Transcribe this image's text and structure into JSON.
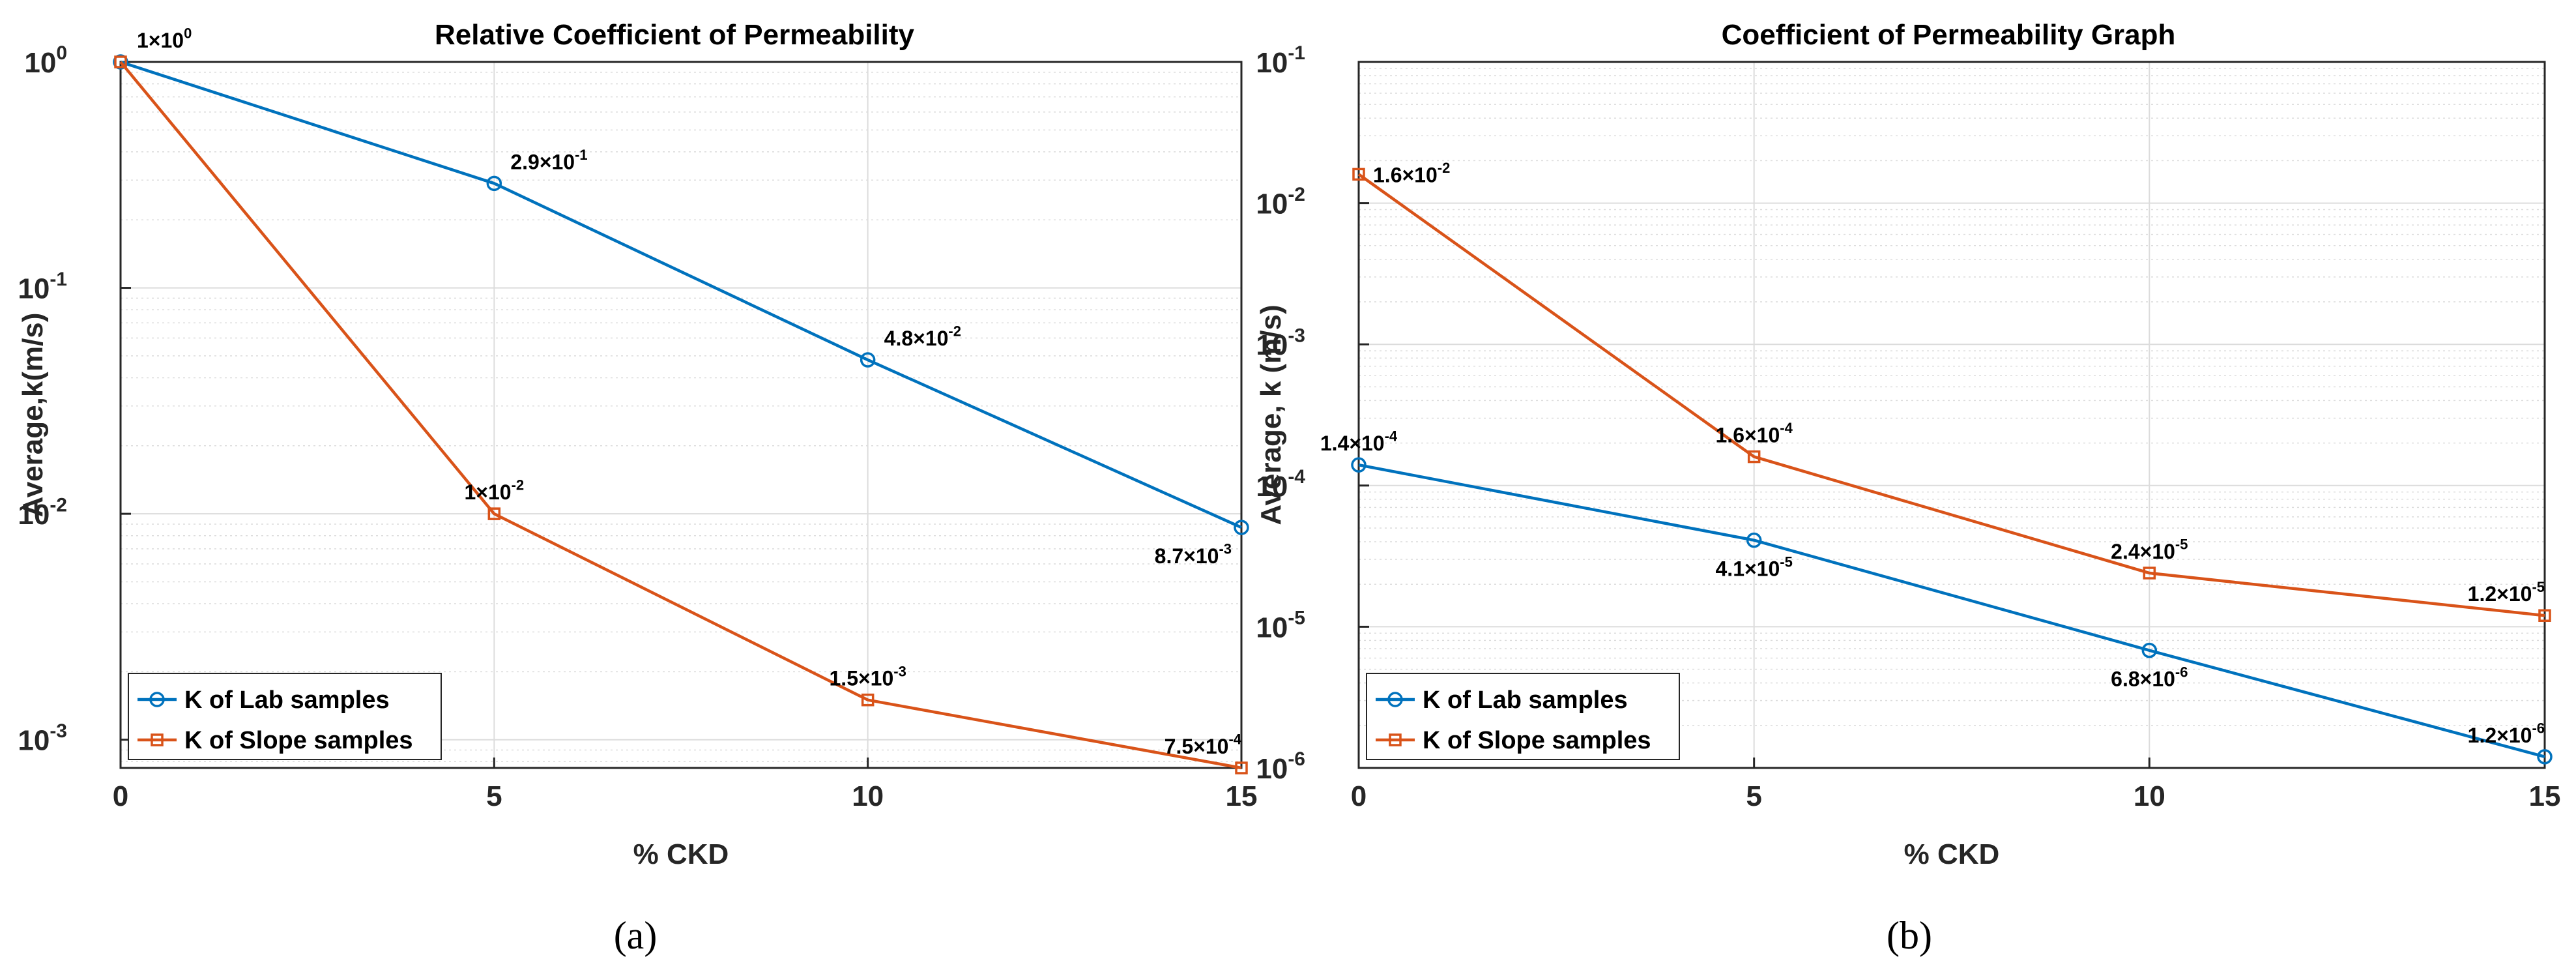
{
  "colors": {
    "lab": "#0072BD",
    "slope": "#D95319",
    "grid": "#dcdcdc",
    "axis": "#262626"
  },
  "captions": [
    "(a)",
    "(b)"
  ],
  "chart_data": [
    {
      "type": "line",
      "yscale": "log",
      "title": "Relative Coefficient of Permeability",
      "xlabel": "% CKD",
      "ylabel": "Average,k(m/s)",
      "xlim": [
        0,
        15
      ],
      "ylim": [
        0.00075,
        1.0
      ],
      "xticks": [
        0,
        5,
        10,
        15
      ],
      "yticks": [
        {
          "value": 1,
          "base": "10",
          "exp": "0"
        },
        {
          "value": 0.1,
          "base": "10",
          "exp": "-1"
        },
        {
          "value": 0.01,
          "base": "10",
          "exp": "-2"
        },
        {
          "value": 0.001,
          "base": "10",
          "exp": "-3"
        }
      ],
      "grid": true,
      "legend_position": "bottom-left",
      "x": [
        0,
        5,
        10,
        15
      ],
      "series": [
        {
          "name": "K of Lab samples",
          "color": "#0072BD",
          "marker": "circle",
          "values": [
            1,
            0.29,
            0.048,
            0.0087
          ],
          "labels": [
            {
              "mant": "1×10",
              "exp": "0",
              "pos": "above-right"
            },
            {
              "mant": "2.9×10",
              "exp": "-1",
              "pos": "above-right"
            },
            {
              "mant": "4.8×10",
              "exp": "-2",
              "pos": "above-right"
            },
            {
              "mant": "8.7×10",
              "exp": "-3",
              "pos": "below-left"
            }
          ]
        },
        {
          "name": "K of Slope samples",
          "color": "#D95319",
          "marker": "square",
          "values": [
            1,
            0.01,
            0.0015,
            0.00075
          ],
          "labels": [
            null,
            {
              "mant": "1×10",
              "exp": "-2",
              "pos": "above"
            },
            {
              "mant": "1.5×10",
              "exp": "-3",
              "pos": "above"
            },
            {
              "mant": "7.5×10",
              "exp": "-4",
              "pos": "above-left"
            }
          ]
        }
      ]
    },
    {
      "type": "line",
      "yscale": "log",
      "title": "Coefficient of Permeability Graph",
      "xlabel": "% CKD",
      "ylabel": "Average, k (m/s)",
      "xlim": [
        0,
        15
      ],
      "ylim": [
        1e-06,
        0.1
      ],
      "xticks": [
        0,
        5,
        10,
        15
      ],
      "yticks": [
        {
          "value": 0.1,
          "base": "10",
          "exp": "-1"
        },
        {
          "value": 0.01,
          "base": "10",
          "exp": "-2"
        },
        {
          "value": 0.001,
          "base": "10",
          "exp": "-3"
        },
        {
          "value": 0.0001,
          "base": "10",
          "exp": "-4"
        },
        {
          "value": 1e-05,
          "base": "10",
          "exp": "-5"
        },
        {
          "value": 1e-06,
          "base": "10",
          "exp": "-6"
        }
      ],
      "grid": true,
      "legend_position": "bottom-left",
      "x": [
        0,
        5,
        10,
        15
      ],
      "series": [
        {
          "name": "K of Lab samples",
          "color": "#0072BD",
          "marker": "circle",
          "values": [
            0.00014,
            4.1e-05,
            6.8e-06,
            1.2e-06
          ],
          "labels": [
            {
              "mant": "1.4×10",
              "exp": "-4",
              "pos": "above"
            },
            {
              "mant": "4.1×10",
              "exp": "-5",
              "pos": "below"
            },
            {
              "mant": "6.8×10",
              "exp": "-6",
              "pos": "below"
            },
            {
              "mant": "1.2×10",
              "exp": "-6",
              "pos": "above-left"
            }
          ]
        },
        {
          "name": "K of Slope samples",
          "color": "#D95319",
          "marker": "square",
          "values": [
            0.016,
            0.00016,
            2.4e-05,
            1.2e-05
          ],
          "labels": [
            {
              "mant": "1.6×10",
              "exp": "-2",
              "pos": "right"
            },
            {
              "mant": "1.6×10",
              "exp": "-4",
              "pos": "above"
            },
            {
              "mant": "2.4×10",
              "exp": "-5",
              "pos": "above"
            },
            {
              "mant": "1.2×10",
              "exp": "-5",
              "pos": "above-left"
            }
          ]
        }
      ]
    }
  ]
}
